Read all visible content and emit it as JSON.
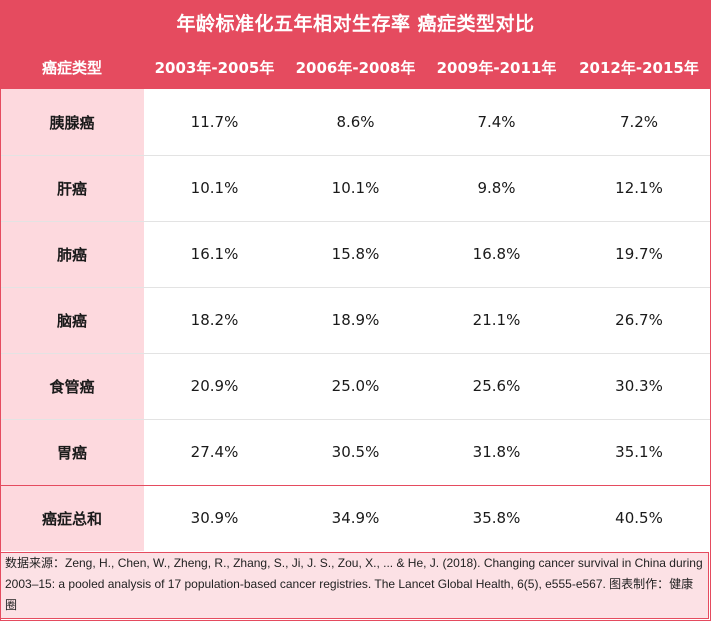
{
  "chart_data": {
    "type": "table",
    "title": "年龄标准化五年相对生存率 癌症类型对比",
    "column_header_label": "癌症类型",
    "columns": [
      "2003年-2005年",
      "2006年-2008年",
      "2009年-2011年",
      "2012年-2015年"
    ],
    "rows": [
      {
        "label": "胰腺癌",
        "values": [
          "11.7%",
          "8.6%",
          "7.4%",
          "7.2%"
        ]
      },
      {
        "label": "肝癌",
        "values": [
          "10.1%",
          "10.1%",
          "9.8%",
          "12.1%"
        ]
      },
      {
        "label": "肺癌",
        "values": [
          "16.1%",
          "15.8%",
          "16.8%",
          "19.7%"
        ]
      },
      {
        "label": "脑癌",
        "values": [
          "18.2%",
          "18.9%",
          "21.1%",
          "26.7%"
        ]
      },
      {
        "label": "食管癌",
        "values": [
          "20.9%",
          "25.0%",
          "25.6%",
          "30.3%"
        ]
      },
      {
        "label": "胃癌",
        "values": [
          "27.4%",
          "30.5%",
          "31.8%",
          "35.1%"
        ]
      },
      {
        "label": "癌症总和",
        "values": [
          "30.9%",
          "34.9%",
          "35.8%",
          "40.5%"
        ]
      }
    ],
    "source_note": "数据来源：Zeng, H., Chen, W., Zheng, R., Zhang, S., Ji, J. S., Zou, X., ... & He, J. (2018). Changing cancer survival in China during 2003–15: a pooled analysis of 17 population-based cancer registries. The Lancet Global Health, 6(5), e555-e567. 图表制作：健康圈"
  },
  "colors": {
    "header_bg": "#e54b5f",
    "label_bg": "#fdd9de",
    "source_bg": "#fce1e5"
  }
}
